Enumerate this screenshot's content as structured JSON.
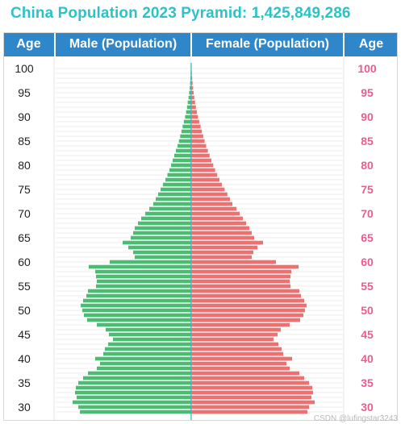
{
  "title": "China Population 2023 Pyramid: 1,425,849,286",
  "headers": {
    "age_left": "Age",
    "male": "Male (Population)",
    "female": "Female (Population)",
    "age_right": "Age"
  },
  "watermark": "CSDN @lufingstar3243",
  "colors": {
    "header_bg": "#2f86c9",
    "male": "#4cbb74",
    "female": "#f07070",
    "female_age_label": "#e85c8f",
    "title": "#2cc3c8",
    "center_axis": "#3fb7c0"
  },
  "chart_data": {
    "type": "bar",
    "orientation": "horizontal",
    "layout": "population pyramid",
    "age_labels_shown": [
      100,
      95,
      90,
      85,
      80,
      75,
      70,
      65,
      60,
      55,
      50,
      45,
      40,
      35,
      30
    ],
    "ages": [
      100,
      99,
      98,
      97,
      96,
      95,
      94,
      93,
      92,
      91,
      90,
      89,
      88,
      87,
      86,
      85,
      84,
      83,
      82,
      81,
      80,
      79,
      78,
      77,
      76,
      75,
      74,
      73,
      72,
      71,
      70,
      69,
      68,
      67,
      66,
      65,
      64,
      63,
      62,
      61,
      60,
      59,
      58,
      57,
      56,
      55,
      54,
      53,
      52,
      51,
      50,
      49,
      48,
      47,
      46,
      45,
      44,
      43,
      42,
      41,
      40,
      39,
      38,
      37,
      36,
      35,
      34,
      33,
      32,
      31,
      30,
      29
    ],
    "series": [
      {
        "name": "Male (Population)",
        "values": [
          0.3,
          0.6,
          0.9,
          1.4,
          1.9,
          2.6,
          3.3,
          4.3,
          5.2,
          6.3,
          7.6,
          9.1,
          10.7,
          12.1,
          13.7,
          15.2,
          17.0,
          19.0,
          21.0,
          23.0,
          25.0,
          27.0,
          29.5,
          32.0,
          35.0,
          38.0,
          41.0,
          44.0,
          47.0,
          52.0,
          57.0,
          62.0,
          66.0,
          70.0,
          72.0,
          75.0,
          85.0,
          78.0,
          72.0,
          70.0,
          101.0,
          127.0,
          119.0,
          118.0,
          117.0,
          118.0,
          128.0,
          130.0,
          134.0,
          137.0,
          135.0,
          133.0,
          129.0,
          117.0,
          106.0,
          102.0,
          97.0,
          103.0,
          107.0,
          109.0,
          119.0,
          113.0,
          117.0,
          128.0,
          134.0,
          140.0,
          143.0,
          144.0,
          142.0,
          147.0,
          140.0,
          138.0
        ]
      },
      {
        "name": "Female (Population)",
        "values": [
          0.4,
          0.8,
          1.2,
          1.7,
          2.3,
          3.0,
          3.8,
          4.8,
          5.8,
          7.0,
          8.3,
          9.9,
          11.6,
          13.2,
          14.9,
          16.6,
          18.5,
          20.6,
          22.8,
          25.0,
          27.3,
          29.6,
          32.2,
          35.0,
          38.0,
          41.4,
          44.8,
          48.0,
          51.0,
          56.0,
          60.0,
          64.0,
          68.0,
          72.0,
          75.0,
          78.0,
          89.0,
          82.0,
          77.0,
          75.0,
          105.0,
          133.0,
          124.0,
          123.0,
          122.0,
          123.0,
          134.0,
          136.0,
          140.0,
          143.0,
          141.0,
          139.0,
          135.0,
          122.0,
          111.0,
          107.0,
          102.0,
          108.0,
          112.0,
          114.0,
          125.0,
          118.0,
          122.0,
          134.0,
          140.0,
          146.0,
          150.0,
          151.0,
          149.0,
          153.0,
          146.0,
          144.0
        ]
      }
    ],
    "grid": true,
    "legend": "none"
  }
}
